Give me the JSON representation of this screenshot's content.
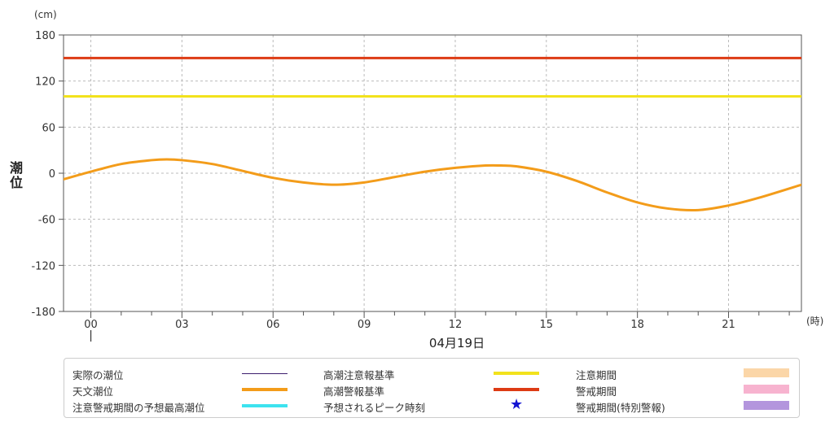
{
  "chart_data": {
    "type": "line",
    "y_unit": "(cm)",
    "x_unit": "(時)",
    "ylabel": "潮位",
    "date_label": "04月19日",
    "ylim": [
      -180,
      180
    ],
    "xlim": [
      -0.9,
      23.4
    ],
    "y_ticks": [
      180,
      120,
      60,
      0,
      -60,
      -120,
      -180
    ],
    "y_tick_labels": [
      "180",
      "120",
      "60",
      "0",
      "-60",
      "-120",
      "-180"
    ],
    "x_ticks": [
      0,
      3,
      6,
      9,
      12,
      15,
      18,
      21
    ],
    "x_tick_labels": [
      "00",
      "03",
      "06",
      "09",
      "12",
      "15",
      "18",
      "21"
    ],
    "grid": true,
    "series": [
      {
        "name": "天文潮位",
        "color": "#f39c1a",
        "x": [
          -0.9,
          0,
          1,
          2,
          2.5,
          3,
          4,
          5,
          6,
          7,
          8,
          9,
          10,
          11,
          12,
          13,
          13.5,
          14,
          15,
          16,
          17,
          18,
          19,
          20,
          21,
          22,
          23.4
        ],
        "y": [
          -8,
          2,
          12,
          17,
          18,
          17,
          12,
          3,
          -6,
          -12,
          -15,
          -12,
          -5,
          2,
          7,
          10,
          10,
          9,
          2,
          -10,
          -25,
          -38,
          -46,
          -48,
          -42,
          -32,
          -15
        ]
      },
      {
        "name": "高潮注意報基準",
        "color": "#f2e21c",
        "x": [
          -0.9,
          23.4
        ],
        "y": [
          100,
          100
        ]
      },
      {
        "name": "高潮警報基準",
        "color": "#dd3b14",
        "x": [
          -0.9,
          23.4
        ],
        "y": [
          150,
          150
        ]
      }
    ]
  },
  "legend": [
    {
      "label": "実際の潮位",
      "swatch": "thin-line",
      "color": "#3c1e6e"
    },
    {
      "label": "高潮注意報基準",
      "swatch": "line",
      "color": "#f2e21c"
    },
    {
      "label": "注意期間",
      "swatch": "band",
      "color": "#fbd6a8"
    },
    {
      "label": "天文潮位",
      "swatch": "line",
      "color": "#f39c1a"
    },
    {
      "label": "高潮警報基準",
      "swatch": "line",
      "color": "#dd3b14"
    },
    {
      "label": "警戒期間",
      "swatch": "band",
      "color": "#f7b3cf"
    },
    {
      "label": "注意警戒期間の予想最高潮位",
      "swatch": "line",
      "color": "#3de3ef"
    },
    {
      "label": "予想されるピーク時刻",
      "swatch": "star",
      "color": "#1414d2",
      "icon": "star-icon"
    },
    {
      "label": "警戒期間(特別警報)",
      "swatch": "band",
      "color": "#b395dd"
    }
  ]
}
